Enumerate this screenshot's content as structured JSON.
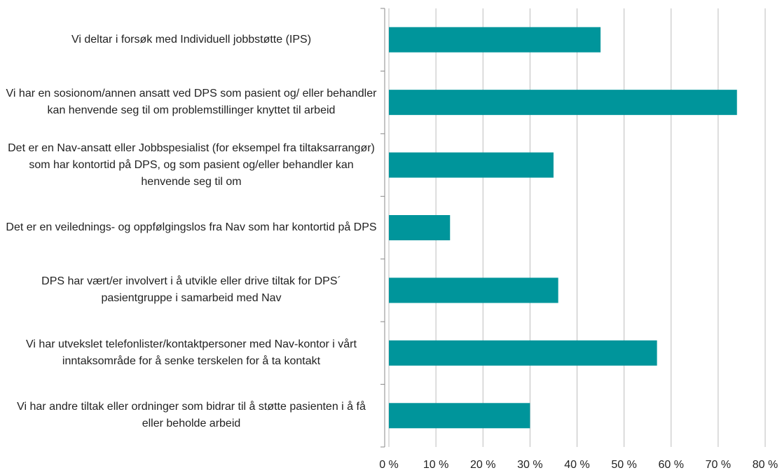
{
  "chart_data": {
    "type": "bar",
    "orientation": "horizontal",
    "categories": [
      "Vi deltar i forsøk med Individuell jobbstøtte (IPS)",
      "Vi har en sosionom/annen ansatt ved DPS som pasient og/ eller behandler kan henvende seg til om problemstillinger knyttet til arbeid",
      "Det er en Nav-ansatt eller Jobbspesialist (for eksempel fra tiltaksarrangør) som har kontortid på DPS, og som pasient og/eller behandler kan henvende seg til om",
      "Det er en veilednings- og oppfølgingslos fra Nav som har kontortid på DPS",
      "DPS har vært/er involvert i å utvikle eller drive tiltak for DPS´ pasientgruppe i samarbeid med Nav",
      "Vi har utvekslet telefonlister/kontaktpersoner med Nav-kontor i vårt inntaksområde for å senke terskelen for å ta kontakt",
      "Vi har andre tiltak eller ordninger som bidrar til å støtte pasienten i å få eller beholde arbeid"
    ],
    "values": [
      45,
      74,
      35,
      13,
      36,
      57,
      30
    ],
    "color": "#00959b",
    "xlim": [
      0,
      80
    ],
    "xticks": [
      {
        "value": 0,
        "label": "0 %"
      },
      {
        "value": 10,
        "label": "10 %"
      },
      {
        "value": 20,
        "label": "20 %"
      },
      {
        "value": 30,
        "label": "30 %"
      },
      {
        "value": 40,
        "label": "40 %"
      },
      {
        "value": 50,
        "label": "50 %"
      },
      {
        "value": 60,
        "label": "60 %"
      },
      {
        "value": 70,
        "label": "70 %"
      },
      {
        "value": 80,
        "label": "80 %"
      }
    ],
    "grid": true
  }
}
